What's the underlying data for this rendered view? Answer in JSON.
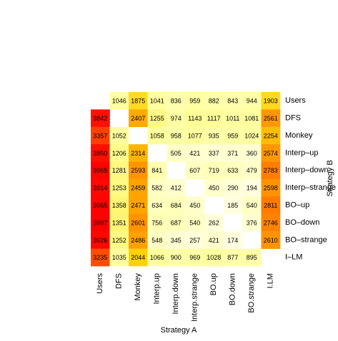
{
  "chart_data": {
    "type": "heatmap",
    "x_label": "Strategy A",
    "y_label": "Strategy B",
    "x_categories": [
      "Users",
      "DFS",
      "Monkey",
      "Interp.up",
      "Interp.down",
      "Interp.strange",
      "BO.up",
      "BO.down",
      "BO.strange",
      "I.LM"
    ],
    "y_categories": [
      "Users",
      "DFS",
      "Monkey",
      "Interp–up",
      "Interp–down",
      "Interp–strange",
      "BO–up",
      "BO–down",
      "BO–strange",
      "I–LM"
    ],
    "values": [
      [
        null,
        1046,
        1875,
        1041,
        836,
        959,
        882,
        843,
        944,
        1903
      ],
      [
        3842,
        null,
        2407,
        1255,
        974,
        1143,
        1117,
        1011,
        1081,
        2561
      ],
      [
        3357,
        1052,
        null,
        1058,
        958,
        1077,
        935,
        959,
        1024,
        2254
      ],
      [
        3850,
        1206,
        2314,
        null,
        505,
        421,
        337,
        371,
        360,
        2574
      ],
      [
        3965,
        1281,
        2593,
        841,
        null,
        607,
        719,
        633,
        479,
        2783
      ],
      [
        3914,
        1253,
        2459,
        582,
        412,
        null,
        450,
        290,
        194,
        2598
      ],
      [
        3965,
        1358,
        2471,
        634,
        684,
        450,
        null,
        185,
        540,
        2811
      ],
      [
        3997,
        1351,
        2601,
        756,
        687,
        540,
        262,
        null,
        376,
        2746
      ],
      [
        3926,
        1252,
        2486,
        548,
        345,
        257,
        421,
        174,
        null,
        2610
      ],
      [
        3235,
        1035,
        2044,
        1066,
        900,
        969,
        1028,
        877,
        895,
        null
      ]
    ],
    "colorscale": [
      "#ffffe0",
      "#ffff99",
      "#ffd000",
      "#ff6000",
      "#ff0000"
    ]
  }
}
